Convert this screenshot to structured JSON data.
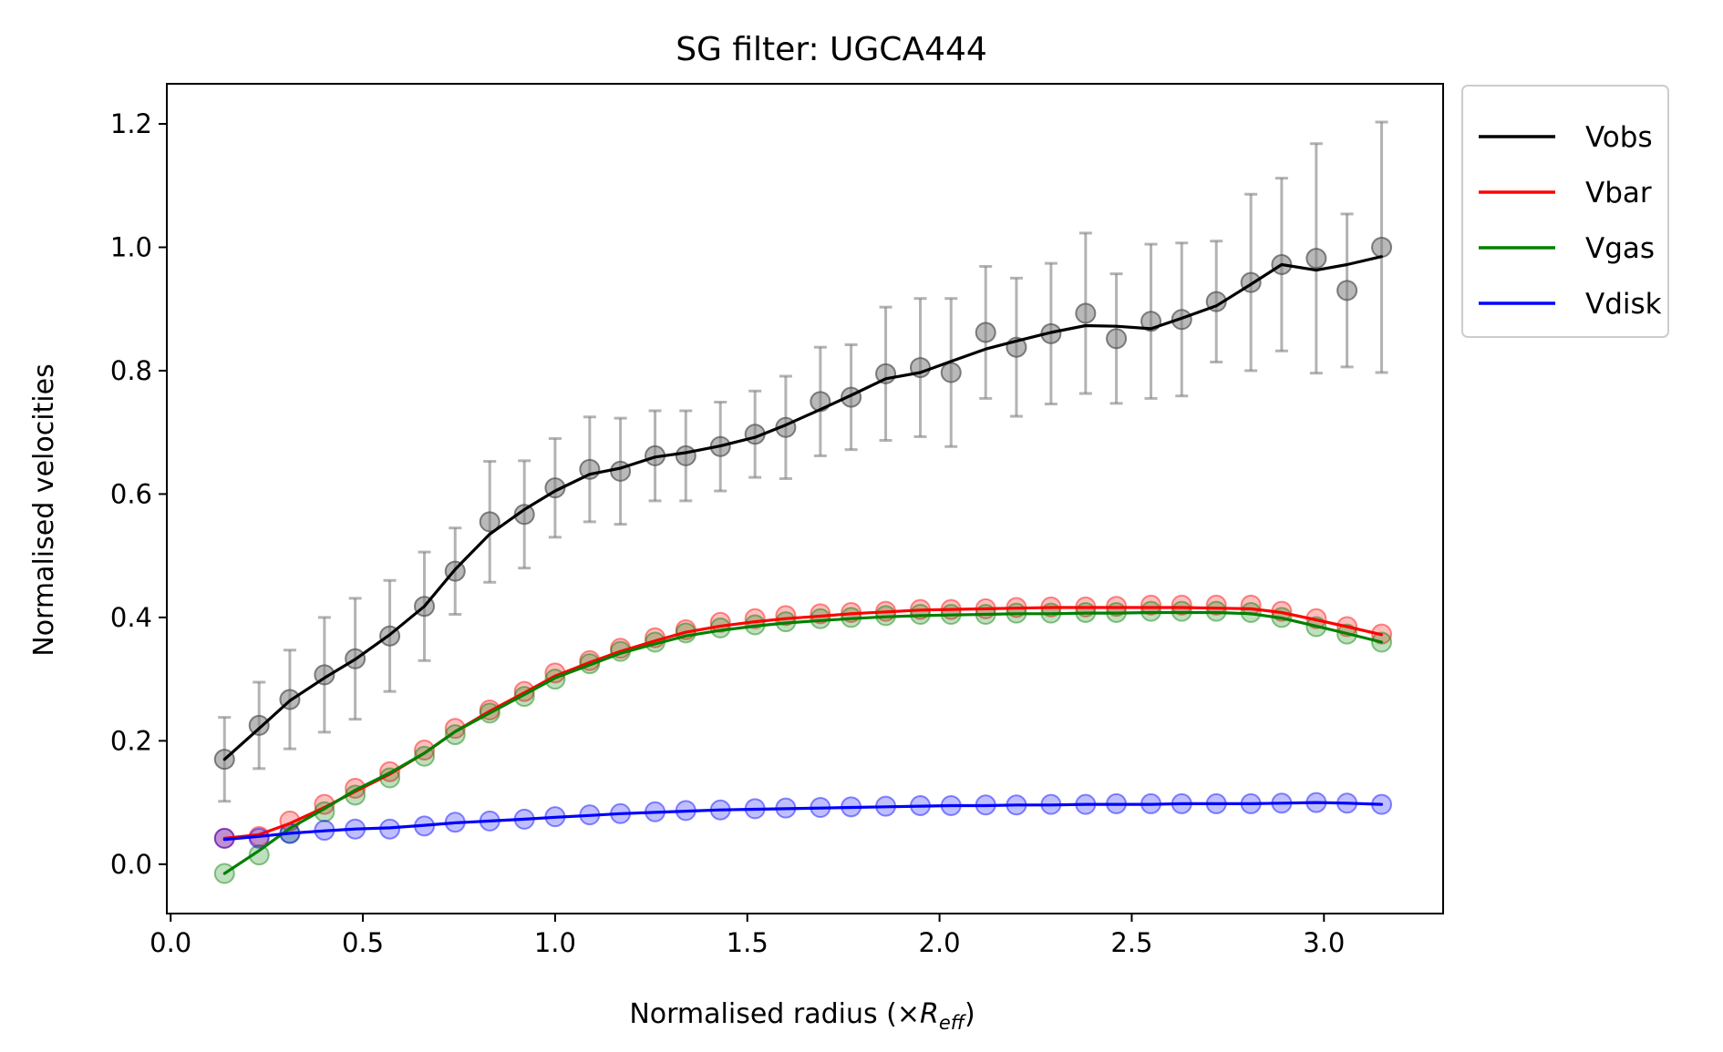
{
  "chart_data": {
    "type": "line",
    "title": "SG filter: UGCA444",
    "xlabel_main": "Normalised radius (×",
    "xlabel_sym": "R",
    "xlabel_sub": "eff",
    "xlabel_end": ")",
    "ylabel": "Normalised velocities",
    "xlim": [
      -0.01,
      3.31
    ],
    "ylim": [
      -0.08,
      1.265
    ],
    "xticks": [
      0.0,
      0.5,
      1.0,
      1.5,
      2.0,
      2.5,
      3.0
    ],
    "xtick_labels": [
      "0.0",
      "0.5",
      "1.0",
      "1.5",
      "2.0",
      "2.5",
      "3.0"
    ],
    "yticks": [
      0.0,
      0.2,
      0.4,
      0.6,
      0.8,
      1.0,
      1.2
    ],
    "ytick_labels": [
      "0.0",
      "0.2",
      "0.4",
      "0.6",
      "0.8",
      "1.0",
      "1.2"
    ],
    "grid": false,
    "legend_position": "outside-top-right",
    "x": [
      0.14,
      0.23,
      0.31,
      0.4,
      0.48,
      0.57,
      0.66,
      0.74,
      0.83,
      0.92,
      1.0,
      1.09,
      1.17,
      1.26,
      1.34,
      1.43,
      1.52,
      1.6,
      1.69,
      1.77,
      1.86,
      1.95,
      2.03,
      2.12,
      2.2,
      2.29,
      2.38,
      2.46,
      2.55,
      2.63,
      2.72,
      2.81,
      2.89,
      2.98,
      3.06,
      3.15
    ],
    "series": [
      {
        "name": "Vobs",
        "color": "#000000",
        "points": [
          0.17,
          0.225,
          0.267,
          0.307,
          0.333,
          0.37,
          0.418,
          0.475,
          0.555,
          0.567,
          0.61,
          0.64,
          0.637,
          0.662,
          0.662,
          0.677,
          0.697,
          0.708,
          0.75,
          0.757,
          0.795,
          0.805,
          0.797,
          0.862,
          0.838,
          0.86,
          0.893,
          0.852,
          0.88,
          0.883,
          0.912,
          0.943,
          0.972,
          0.982,
          0.93,
          1.0
        ],
        "line": [
          0.17,
          0.22,
          0.265,
          0.302,
          0.332,
          0.372,
          0.418,
          0.478,
          0.535,
          0.575,
          0.605,
          0.632,
          0.642,
          0.66,
          0.667,
          0.678,
          0.692,
          0.712,
          0.737,
          0.76,
          0.787,
          0.797,
          0.815,
          0.835,
          0.848,
          0.862,
          0.873,
          0.872,
          0.868,
          0.885,
          0.905,
          0.94,
          0.972,
          0.963,
          0.972,
          0.985
        ],
        "err": [
          0.068,
          0.07,
          0.08,
          0.093,
          0.098,
          0.09,
          0.088,
          0.07,
          0.098,
          0.087,
          0.08,
          0.085,
          0.086,
          0.073,
          0.073,
          0.072,
          0.07,
          0.083,
          0.088,
          0.085,
          0.108,
          0.112,
          0.12,
          0.107,
          0.112,
          0.114,
          0.13,
          0.105,
          0.125,
          0.124,
          0.098,
          0.143,
          0.14,
          0.186,
          0.124,
          0.203
        ]
      },
      {
        "name": "Vbar",
        "color": "#ff0000",
        "points": [
          0.042,
          0.045,
          0.07,
          0.097,
          0.123,
          0.15,
          0.185,
          0.22,
          0.25,
          0.28,
          0.31,
          0.33,
          0.35,
          0.367,
          0.38,
          0.392,
          0.398,
          0.403,
          0.406,
          0.408,
          0.41,
          0.413,
          0.413,
          0.414,
          0.416,
          0.417,
          0.417,
          0.418,
          0.42,
          0.42,
          0.42,
          0.42,
          0.41,
          0.398,
          0.385,
          0.373
        ],
        "line": [
          0.042,
          0.048,
          0.066,
          0.092,
          0.118,
          0.146,
          0.18,
          0.215,
          0.248,
          0.278,
          0.305,
          0.327,
          0.345,
          0.362,
          0.376,
          0.386,
          0.393,
          0.398,
          0.402,
          0.406,
          0.409,
          0.412,
          0.413,
          0.414,
          0.415,
          0.416,
          0.416,
          0.416,
          0.416,
          0.416,
          0.415,
          0.414,
          0.408,
          0.396,
          0.385,
          0.372
        ]
      },
      {
        "name": "Vgas",
        "color": "#008000",
        "points": [
          -0.015,
          0.015,
          0.05,
          0.085,
          0.112,
          0.14,
          0.175,
          0.21,
          0.245,
          0.272,
          0.3,
          0.325,
          0.345,
          0.36,
          0.375,
          0.383,
          0.388,
          0.393,
          0.398,
          0.4,
          0.403,
          0.405,
          0.405,
          0.405,
          0.407,
          0.407,
          0.408,
          0.408,
          0.41,
          0.41,
          0.41,
          0.408,
          0.4,
          0.385,
          0.373,
          0.36
        ],
        "line": [
          -0.015,
          0.022,
          0.058,
          0.09,
          0.12,
          0.148,
          0.18,
          0.215,
          0.245,
          0.275,
          0.302,
          0.323,
          0.342,
          0.357,
          0.37,
          0.379,
          0.386,
          0.391,
          0.395,
          0.398,
          0.401,
          0.403,
          0.404,
          0.405,
          0.406,
          0.406,
          0.407,
          0.407,
          0.408,
          0.408,
          0.408,
          0.406,
          0.399,
          0.386,
          0.374,
          0.36
        ]
      },
      {
        "name": "Vdisk",
        "color": "#0000ff",
        "points": [
          0.042,
          0.042,
          0.05,
          0.055,
          0.057,
          0.057,
          0.062,
          0.068,
          0.07,
          0.073,
          0.077,
          0.08,
          0.082,
          0.085,
          0.087,
          0.088,
          0.09,
          0.091,
          0.092,
          0.093,
          0.094,
          0.095,
          0.095,
          0.096,
          0.096,
          0.097,
          0.097,
          0.098,
          0.098,
          0.098,
          0.098,
          0.098,
          0.099,
          0.1,
          0.099,
          0.097
        ],
        "line": [
          0.04,
          0.045,
          0.05,
          0.054,
          0.057,
          0.059,
          0.063,
          0.067,
          0.07,
          0.073,
          0.076,
          0.079,
          0.082,
          0.084,
          0.086,
          0.088,
          0.089,
          0.09,
          0.091,
          0.092,
          0.093,
          0.094,
          0.095,
          0.095,
          0.096,
          0.096,
          0.097,
          0.097,
          0.097,
          0.098,
          0.098,
          0.098,
          0.099,
          0.1,
          0.099,
          0.097
        ]
      }
    ]
  }
}
